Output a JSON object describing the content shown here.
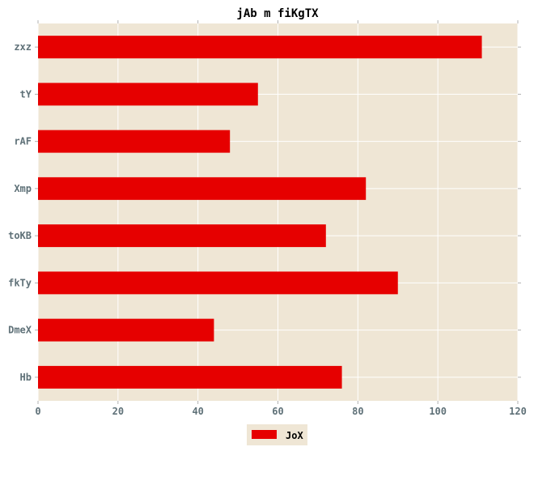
{
  "chart_data": {
    "type": "bar",
    "orientation": "horizontal",
    "title": "jAb m fiKgTX",
    "xlabel": "",
    "ylabel": "",
    "categories": [
      "zxz",
      "tY",
      "rAF",
      "Xmp",
      "toKB",
      "fkTy",
      "DmeX",
      "Hb"
    ],
    "series": [
      {
        "name": "JoX",
        "values": [
          111,
          55,
          48,
          82,
          72,
          90,
          44,
          76
        ],
        "color": "#e60000"
      }
    ],
    "xlim": [
      0,
      120
    ],
    "xticks": [
      0,
      20,
      40,
      60,
      80,
      100,
      120
    ],
    "grid": true,
    "legend_position": "bottom-center",
    "colors": {
      "plot_background": "#efe6d5",
      "grid": "#ffffff",
      "tick_text": "#5f7178",
      "bar": "#e60000"
    }
  }
}
